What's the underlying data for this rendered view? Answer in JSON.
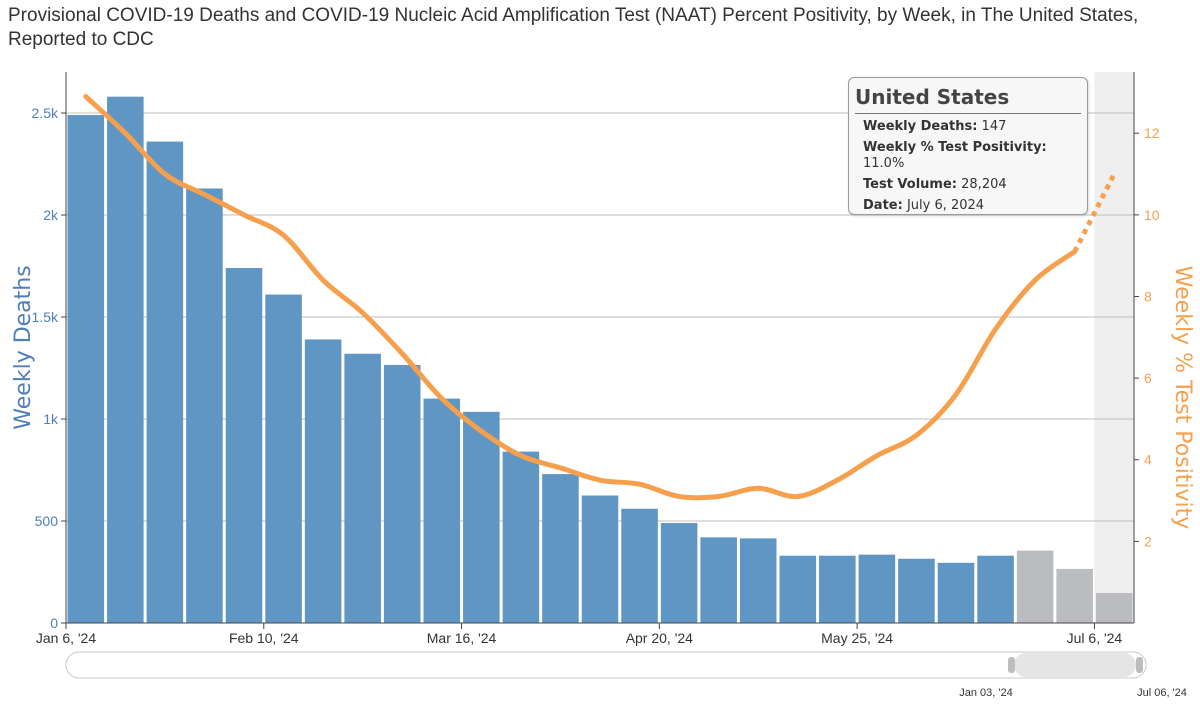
{
  "title": "Provisional COVID-19 Deaths and COVID-19 Nucleic Acid Amplification Test (NAAT) Percent Positivity, by Week, in The United States, Reported to CDC",
  "tooltip": {
    "heading": "United States",
    "rows": [
      {
        "label": "Weekly Deaths:",
        "value": "147"
      },
      {
        "label": "Weekly % Test Positivity:",
        "value": "11.0%"
      },
      {
        "label": "Test Volume:",
        "value": "28,204"
      },
      {
        "label": "Date:",
        "value": "July 6, 2024"
      }
    ]
  },
  "range_selector": {
    "start_label": "Jan 03, '24",
    "end_label": "Jul 06, '24"
  },
  "colors": {
    "deaths": "#6096c3",
    "incomplete": "#bbbcc0",
    "positivity": "#f6a04e",
    "grid": "#bdbdbd"
  },
  "chart_data": {
    "type": "bar",
    "x_tick_labels": [
      "Jan 6, '24",
      "Feb 10, '24",
      "Mar 16, '24",
      "Apr 20, '24",
      "May 25, '24",
      "Jul 6, '24"
    ],
    "x_tick_weeks": [
      0,
      5,
      10,
      15,
      20,
      26
    ],
    "left_axis": {
      "label": "Weekly Deaths",
      "ticks": [
        "0",
        "500",
        "1k",
        "1.5k",
        "2k",
        "2.5k"
      ],
      "tick_values": [
        0,
        500,
        1000,
        1500,
        2000,
        2500
      ],
      "range": [
        0,
        2500
      ]
    },
    "right_axis": {
      "label": "Weekly % Test Positivity",
      "ticks": [
        "2",
        "4",
        "6",
        "8",
        "10",
        "12"
      ],
      "tick_values": [
        2,
        4,
        6,
        8,
        10,
        12
      ],
      "range": [
        0,
        13.5
      ]
    },
    "series": [
      {
        "name": "Weekly Deaths",
        "type": "bar",
        "values": [
          2490,
          2580,
          2360,
          2130,
          1740,
          1610,
          1390,
          1320,
          1265,
          1100,
          1035,
          840,
          730,
          625,
          560,
          490,
          420,
          415,
          330,
          330,
          335,
          315,
          295,
          330,
          355,
          265,
          147
        ],
        "incomplete_from_index": 24
      },
      {
        "name": "Weekly % Test Positivity",
        "type": "line",
        "values": [
          12.9,
          12.0,
          11.0,
          10.5,
          10.0,
          9.5,
          8.4,
          7.6,
          6.6,
          5.5,
          4.7,
          4.1,
          3.8,
          3.5,
          3.4,
          3.1,
          3.1,
          3.3,
          3.1,
          3.5,
          4.1,
          4.6,
          5.6,
          7.2,
          8.4,
          9.1,
          11.0
        ],
        "dotted_from_index": 25
      }
    ],
    "shaded_week_index": 26,
    "grid": true
  }
}
